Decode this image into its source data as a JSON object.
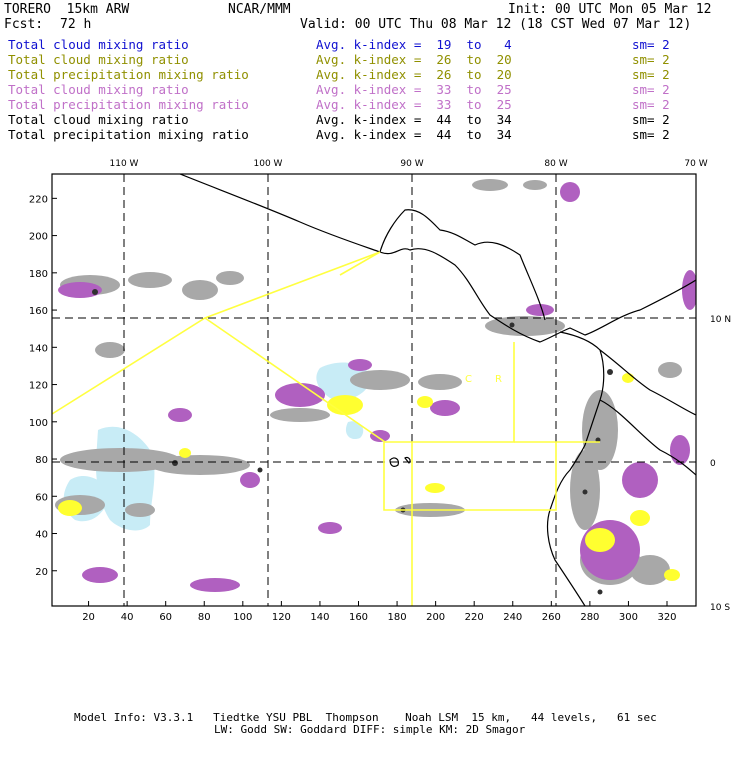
{
  "header": {
    "model": "TORERO  15km ARW",
    "org": "NCAR/MMM",
    "init": "Init: 00 UTC Mon 05 Mar 12",
    "fcst_label": "Fcst:",
    "fcst_value": "72 h",
    "valid": "Valid: 00 UTC Thu 08 Mar 12 (18 CST Wed 07 Mar 12)"
  },
  "legend": [
    {
      "name": "Total cloud mixing ratio",
      "index": "Avg. k-index =  19  to   4",
      "sm": "sm= 2",
      "color": "#1010d0"
    },
    {
      "name": "Total cloud mixing ratio",
      "index": "Avg. k-index =  26  to  20",
      "sm": "sm= 2",
      "color": "#909000"
    },
    {
      "name": "Total precipitation mixing ratio",
      "index": "Avg. k-index =  26  to  20",
      "sm": "sm= 2",
      "color": "#909000"
    },
    {
      "name": "Total cloud mixing ratio",
      "index": "Avg. k-index =  33  to  25",
      "sm": "sm= 2",
      "color": "#c070c8"
    },
    {
      "name": "Total precipitation mixing ratio",
      "index": "Avg. k-index =  33  to  25",
      "sm": "sm= 2",
      "color": "#c070c8"
    },
    {
      "name": "Total cloud mixing ratio",
      "index": "Avg. k-index =  44  to  34",
      "sm": "sm= 2",
      "color": "#000000"
    },
    {
      "name": "Total precipitation mixing ratio",
      "index": "Avg. k-index =  44  to  34",
      "sm": "sm= 2",
      "color": "#000000"
    }
  ],
  "map": {
    "lon_labels": [
      "110 W",
      "100 W",
      "90 W",
      "80 W",
      "70 W"
    ],
    "lat_labels": [
      "10 N",
      "0",
      "10 S"
    ],
    "y_ticks": [
      "220",
      "200",
      "180",
      "160",
      "140",
      "120",
      "100",
      "80",
      "60",
      "40",
      "20"
    ],
    "x_ticks": [
      "20",
      "40",
      "60",
      "80",
      "100",
      "120",
      "140",
      "160",
      "180",
      "200",
      "220",
      "240",
      "260",
      "280",
      "300",
      "320"
    ],
    "region_labels": [
      "C",
      "R"
    ],
    "colors": {
      "gray": "#a8a8a8",
      "purple": "#b060c0",
      "yellow": "#ffff30",
      "lightblue": "#c8ecf6",
      "dark": "#303030",
      "boundary": "#ffff40"
    }
  },
  "footer": {
    "line1": "Model Info: V3.3.1   Tiedtke YSU PBL  Thompson    Noah LSM  15 km,   44 levels,   61 sec",
    "line2": "LW: Godd SW: Goddard DIFF: simple KM: 2D Smagor"
  }
}
